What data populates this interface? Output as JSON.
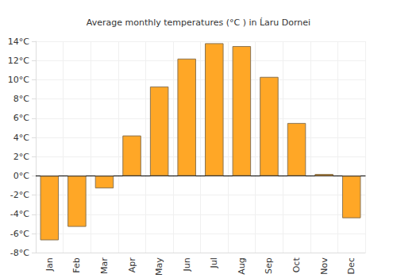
{
  "chart_data": {
    "type": "bar",
    "title": "Average monthly temperatures (°C ) in Ĺaru Dornei",
    "categories": [
      "Jan",
      "Feb",
      "Mar",
      "Apr",
      "May",
      "Jun",
      "Jul",
      "Aug",
      "Sep",
      "Oct",
      "Nov",
      "Dec"
    ],
    "values": [
      -6.7,
      -5.3,
      -1.3,
      4.2,
      9.3,
      12.2,
      13.8,
      13.5,
      10.3,
      5.5,
      0.2,
      -4.4
    ],
    "color": "#ffa726",
    "ylim": [
      -8,
      14
    ],
    "yticks": [
      {
        "value": -8,
        "label": "-8°C"
      },
      {
        "value": -6,
        "label": "-6°C"
      },
      {
        "value": -4,
        "label": "-4°C"
      },
      {
        "value": -2,
        "label": "-2°C"
      },
      {
        "value": 0,
        "label": "0°C"
      },
      {
        "value": 2,
        "label": "2°C"
      },
      {
        "value": 4,
        "label": "4°C"
      },
      {
        "value": 6,
        "label": "6°C"
      },
      {
        "value": 8,
        "label": "8°C"
      },
      {
        "value": 10,
        "label": "10°C"
      },
      {
        "value": 12,
        "label": "12°C"
      },
      {
        "value": 14,
        "label": "14°C"
      }
    ],
    "grid": true
  }
}
